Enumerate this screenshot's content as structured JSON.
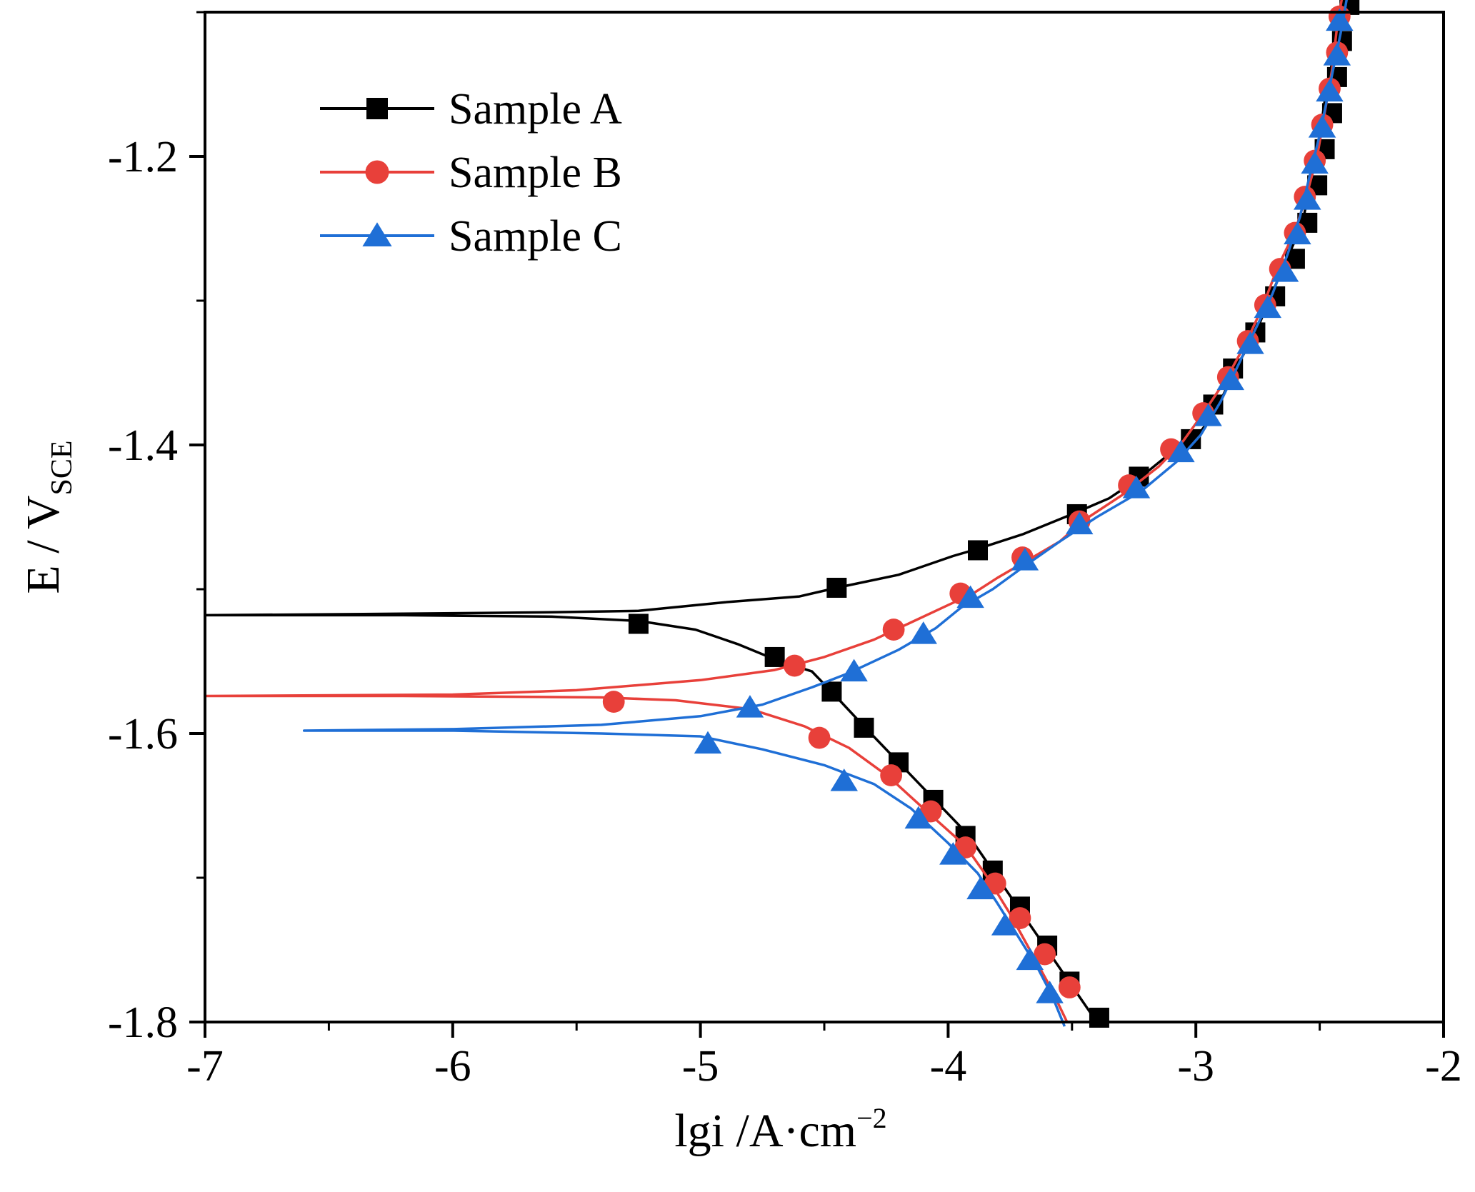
{
  "chart_data": {
    "type": "line",
    "title": "",
    "xlabel": {
      "main": "lgi /A·cm",
      "sup": "−2"
    },
    "ylabel": {
      "main": "E / V",
      "sub": "SCE"
    },
    "xlim": [
      -7,
      -2
    ],
    "ylim": [
      -1.8,
      -1.1
    ],
    "grid": false,
    "legend_position": "top-left",
    "x_ticks": [
      -7,
      -6,
      -5,
      -4,
      -3,
      -2
    ],
    "x_tick_labels": [
      "-7",
      "-6",
      "-5",
      "-4",
      "-3",
      "-2"
    ],
    "y_ticks": [
      -1.8,
      -1.6,
      -1.4,
      -1.2
    ],
    "y_tick_labels": [
      "-1.8",
      "-1.6",
      "-1.4",
      "-1.2"
    ],
    "series": [
      {
        "name": "Sample A",
        "color": "#000000",
        "marker": "square",
        "curve": [
          [
            -3.4,
            -1.8
          ],
          [
            -3.52,
            -1.77
          ],
          [
            -3.62,
            -1.745
          ],
          [
            -3.72,
            -1.72
          ],
          [
            -3.82,
            -1.695
          ],
          [
            -3.92,
            -1.67
          ],
          [
            -4.06,
            -1.645
          ],
          [
            -4.2,
            -1.62
          ],
          [
            -4.34,
            -1.595
          ],
          [
            -4.46,
            -1.573
          ],
          [
            -4.55,
            -1.557
          ],
          [
            -4.68,
            -1.55
          ],
          [
            -4.85,
            -1.538
          ],
          [
            -5.02,
            -1.528
          ],
          [
            -5.25,
            -1.522
          ],
          [
            -5.6,
            -1.519
          ],
          [
            -6.2,
            -1.518
          ],
          [
            -7.0,
            -1.518
          ],
          [
            -6.2,
            -1.517
          ],
          [
            -5.6,
            -1.516
          ],
          [
            -5.25,
            -1.515
          ],
          [
            -4.9,
            -1.509
          ],
          [
            -4.6,
            -1.505
          ],
          [
            -4.45,
            -1.499
          ],
          [
            -4.2,
            -1.49
          ],
          [
            -3.98,
            -1.477
          ],
          [
            -3.88,
            -1.472
          ],
          [
            -3.7,
            -1.462
          ],
          [
            -3.5,
            -1.448
          ],
          [
            -3.35,
            -1.437
          ],
          [
            -3.22,
            -1.422
          ],
          [
            -3.12,
            -1.408
          ],
          [
            -3.0,
            -1.395
          ],
          [
            -2.92,
            -1.377
          ],
          [
            -2.84,
            -1.347
          ],
          [
            -2.76,
            -1.323
          ],
          [
            -2.7,
            -1.298
          ],
          [
            -2.63,
            -1.27
          ],
          [
            -2.57,
            -1.247
          ],
          [
            -2.54,
            -1.22
          ],
          [
            -2.51,
            -1.197
          ],
          [
            -2.48,
            -1.162
          ],
          [
            -2.45,
            -1.135
          ],
          [
            -2.42,
            -1.11
          ],
          [
            -2.39,
            -1.085
          ]
        ],
        "markers": [
          [
            -3.39,
            -1.797
          ],
          [
            -3.51,
            -1.772
          ],
          [
            -3.6,
            -1.747
          ],
          [
            -3.71,
            -1.72
          ],
          [
            -3.82,
            -1.695
          ],
          [
            -3.93,
            -1.671
          ],
          [
            -4.06,
            -1.646
          ],
          [
            -4.2,
            -1.62
          ],
          [
            -4.34,
            -1.596
          ],
          [
            -4.47,
            -1.571
          ],
          [
            -4.7,
            -1.547
          ],
          [
            -5.25,
            -1.524
          ],
          [
            -4.45,
            -1.499
          ],
          [
            -3.88,
            -1.473
          ],
          [
            -3.48,
            -1.448
          ],
          [
            -3.23,
            -1.422
          ],
          [
            -3.02,
            -1.396
          ],
          [
            -2.93,
            -1.372
          ],
          [
            -2.85,
            -1.347
          ],
          [
            -2.76,
            -1.322
          ],
          [
            -2.68,
            -1.297
          ],
          [
            -2.6,
            -1.271
          ],
          [
            -2.55,
            -1.246
          ],
          [
            -2.51,
            -1.22
          ],
          [
            -2.48,
            -1.195
          ],
          [
            -2.45,
            -1.17
          ],
          [
            -2.43,
            -1.145
          ],
          [
            -2.41,
            -1.12
          ],
          [
            -2.38,
            -1.095
          ]
        ]
      },
      {
        "name": "Sample B",
        "color": "#e8403a",
        "marker": "circle",
        "curve": [
          [
            -3.52,
            -1.8
          ],
          [
            -3.59,
            -1.775
          ],
          [
            -3.67,
            -1.75
          ],
          [
            -3.75,
            -1.725
          ],
          [
            -3.84,
            -1.7
          ],
          [
            -3.93,
            -1.678
          ],
          [
            -4.08,
            -1.655
          ],
          [
            -4.24,
            -1.63
          ],
          [
            -4.4,
            -1.61
          ],
          [
            -4.58,
            -1.595
          ],
          [
            -4.8,
            -1.583
          ],
          [
            -5.1,
            -1.577
          ],
          [
            -5.4,
            -1.575
          ],
          [
            -6.2,
            -1.574
          ],
          [
            -7.0,
            -1.574
          ],
          [
            -6.0,
            -1.573
          ],
          [
            -5.5,
            -1.57
          ],
          [
            -5.0,
            -1.563
          ],
          [
            -4.7,
            -1.556
          ],
          [
            -4.5,
            -1.547
          ],
          [
            -4.3,
            -1.535
          ],
          [
            -4.15,
            -1.523
          ],
          [
            -4.0,
            -1.511
          ],
          [
            -3.9,
            -1.503
          ],
          [
            -3.8,
            -1.492
          ],
          [
            -3.68,
            -1.48
          ],
          [
            -3.55,
            -1.467
          ],
          [
            -3.45,
            -1.452
          ],
          [
            -3.3,
            -1.435
          ],
          [
            -3.15,
            -1.415
          ],
          [
            -3.05,
            -1.397
          ],
          [
            -2.97,
            -1.378
          ],
          [
            -2.88,
            -1.355
          ],
          [
            -2.8,
            -1.33
          ],
          [
            -2.73,
            -1.304
          ],
          [
            -2.67,
            -1.277
          ],
          [
            -2.6,
            -1.252
          ],
          [
            -2.55,
            -1.225
          ],
          [
            -2.51,
            -1.2
          ],
          [
            -2.48,
            -1.17
          ],
          [
            -2.45,
            -1.14
          ],
          [
            -2.43,
            -1.11
          ],
          [
            -2.41,
            -1.09
          ]
        ],
        "markers": [
          [
            -3.51,
            -1.776
          ],
          [
            -3.61,
            -1.753
          ],
          [
            -3.71,
            -1.728
          ],
          [
            -3.81,
            -1.704
          ],
          [
            -3.93,
            -1.679
          ],
          [
            -4.07,
            -1.654
          ],
          [
            -4.23,
            -1.629
          ],
          [
            -4.52,
            -1.603
          ],
          [
            -5.35,
            -1.578
          ],
          [
            -4.62,
            -1.553
          ],
          [
            -4.22,
            -1.528
          ],
          [
            -3.95,
            -1.503
          ],
          [
            -3.7,
            -1.478
          ],
          [
            -3.47,
            -1.453
          ],
          [
            -3.27,
            -1.428
          ],
          [
            -3.1,
            -1.403
          ],
          [
            -2.97,
            -1.378
          ],
          [
            -2.87,
            -1.353
          ],
          [
            -2.79,
            -1.328
          ],
          [
            -2.72,
            -1.303
          ],
          [
            -2.66,
            -1.278
          ],
          [
            -2.6,
            -1.253
          ],
          [
            -2.56,
            -1.228
          ],
          [
            -2.52,
            -1.203
          ],
          [
            -2.49,
            -1.178
          ],
          [
            -2.46,
            -1.153
          ],
          [
            -2.43,
            -1.128
          ],
          [
            -2.42,
            -1.103
          ]
        ]
      },
      {
        "name": "Sample C",
        "color": "#1f6fd6",
        "marker": "triangle",
        "curve": [
          [
            -3.53,
            -1.803
          ],
          [
            -3.58,
            -1.782
          ],
          [
            -3.64,
            -1.762
          ],
          [
            -3.72,
            -1.74
          ],
          [
            -3.8,
            -1.718
          ],
          [
            -3.88,
            -1.697
          ],
          [
            -4.0,
            -1.676
          ],
          [
            -4.15,
            -1.652
          ],
          [
            -4.3,
            -1.635
          ],
          [
            -4.5,
            -1.622
          ],
          [
            -4.75,
            -1.611
          ],
          [
            -5.0,
            -1.602
          ],
          [
            -5.4,
            -1.6
          ],
          [
            -6.0,
            -1.598
          ],
          [
            -6.6,
            -1.598
          ],
          [
            -6.0,
            -1.597
          ],
          [
            -5.4,
            -1.594
          ],
          [
            -5.0,
            -1.588
          ],
          [
            -4.75,
            -1.58
          ],
          [
            -4.55,
            -1.568
          ],
          [
            -4.4,
            -1.558
          ],
          [
            -4.2,
            -1.542
          ],
          [
            -4.05,
            -1.527
          ],
          [
            -3.95,
            -1.513
          ],
          [
            -3.82,
            -1.5
          ],
          [
            -3.7,
            -1.485
          ],
          [
            -3.55,
            -1.467
          ],
          [
            -3.4,
            -1.45
          ],
          [
            -3.22,
            -1.432
          ],
          [
            -3.08,
            -1.412
          ],
          [
            -2.98,
            -1.393
          ],
          [
            -2.9,
            -1.37
          ],
          [
            -2.83,
            -1.345
          ],
          [
            -2.76,
            -1.32
          ],
          [
            -2.69,
            -1.295
          ],
          [
            -2.63,
            -1.268
          ],
          [
            -2.58,
            -1.242
          ],
          [
            -2.54,
            -1.213
          ],
          [
            -2.5,
            -1.185
          ],
          [
            -2.47,
            -1.16
          ],
          [
            -2.44,
            -1.135
          ],
          [
            -2.41,
            -1.11
          ],
          [
            -2.39,
            -1.09
          ]
        ],
        "markers": [
          [
            -3.59,
            -1.78
          ],
          [
            -3.67,
            -1.757
          ],
          [
            -3.77,
            -1.733
          ],
          [
            -3.87,
            -1.708
          ],
          [
            -3.98,
            -1.684
          ],
          [
            -4.12,
            -1.659
          ],
          [
            -4.42,
            -1.633
          ],
          [
            -4.97,
            -1.607
          ],
          [
            -4.8,
            -1.582
          ],
          [
            -4.38,
            -1.557
          ],
          [
            -4.1,
            -1.531
          ],
          [
            -3.91,
            -1.506
          ],
          [
            -3.69,
            -1.48
          ],
          [
            -3.47,
            -1.455
          ],
          [
            -3.24,
            -1.43
          ],
          [
            -3.06,
            -1.405
          ],
          [
            -2.95,
            -1.38
          ],
          [
            -2.86,
            -1.355
          ],
          [
            -2.78,
            -1.33
          ],
          [
            -2.71,
            -1.305
          ],
          [
            -2.64,
            -1.28
          ],
          [
            -2.59,
            -1.254
          ],
          [
            -2.55,
            -1.23
          ],
          [
            -2.52,
            -1.205
          ],
          [
            -2.49,
            -1.18
          ],
          [
            -2.46,
            -1.155
          ],
          [
            -2.43,
            -1.13
          ],
          [
            -2.42,
            -1.106
          ]
        ]
      }
    ]
  }
}
